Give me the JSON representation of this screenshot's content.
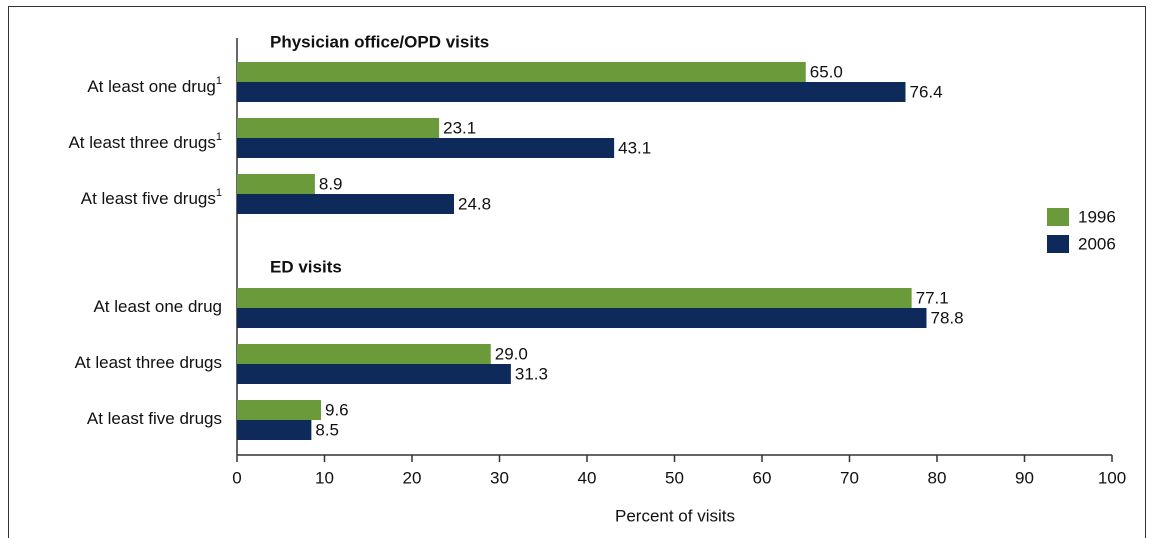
{
  "chart_data": {
    "type": "bar",
    "orientation": "horizontal",
    "group_titles": [
      "Physician office/OPD visits",
      "ED visits"
    ],
    "categories": [
      "At least one drug",
      "At least three drugs",
      "At least five drugs",
      "At least one drug",
      "At least three drugs",
      "At least five drugs"
    ],
    "category_notes": [
      "1",
      "1",
      "1",
      null,
      null,
      null
    ],
    "series": [
      {
        "name": "1996",
        "color": "#6b9a3a",
        "values": [
          65.0,
          23.1,
          8.9,
          77.1,
          29.0,
          9.6
        ],
        "value_labels": [
          "65.0",
          "23.1",
          "8.9",
          "77.1",
          "29.0",
          "9.6"
        ]
      },
      {
        "name": "2006",
        "color": "#0e2a5a",
        "values": [
          76.4,
          43.1,
          24.8,
          78.8,
          31.3,
          8.5
        ],
        "value_labels": [
          "76.4",
          "43.1",
          "24.8",
          "78.8",
          "31.3",
          "8.5"
        ]
      }
    ],
    "xlabel": "Percent of visits",
    "xlim": [
      0,
      100
    ],
    "xticks": [
      0,
      10,
      20,
      30,
      40,
      50,
      60,
      70,
      80,
      90,
      100
    ],
    "legend": "right"
  }
}
